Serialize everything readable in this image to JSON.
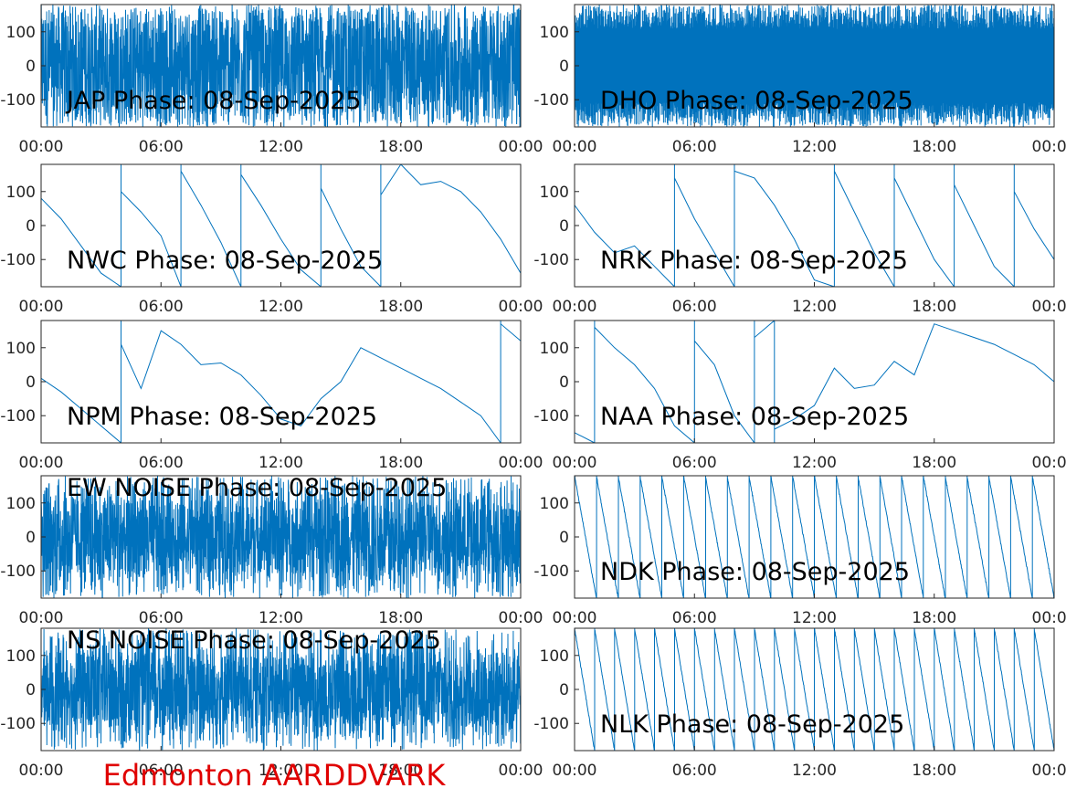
{
  "figure": {
    "footer": "Edmonton AARDDVARK",
    "footer_color": "#e00000",
    "line_color": "#0072bd"
  },
  "chart_data": [
    {
      "type": "line",
      "title": "JAP Phase: 08-Sep-2025",
      "x_ticks": [
        "00:00",
        "06:00",
        "12:00",
        "18:00",
        "00:00"
      ],
      "y_ticks": [
        100,
        0,
        -100
      ],
      "xlim": [
        "00:00",
        "24:00"
      ],
      "ylim": [
        -180,
        180
      ],
      "pattern": "noise",
      "density": 1.0,
      "series": [
        {
          "color": "#0072bd",
          "x": [
            "00:00",
            "24:00"
          ],
          "y": [
            -180,
            180
          ]
        }
      ]
    },
    {
      "type": "line",
      "title": "DHO Phase: 08-Sep-2025",
      "x_ticks": [
        "00:00",
        "06:00",
        "12:00",
        "18:00",
        "00:00"
      ],
      "y_ticks": [
        100,
        0,
        -100
      ],
      "xlim": [
        "00:00",
        "24:00"
      ],
      "ylim": [
        -180,
        180
      ],
      "pattern": "fastwrap",
      "series": [
        {
          "color": "#0072bd",
          "x": [
            "00:00",
            "24:00"
          ],
          "y": [
            -180,
            180
          ]
        }
      ]
    },
    {
      "type": "line",
      "title": "NWC Phase: 08-Sep-2025",
      "x_ticks": [
        "00:00",
        "06:00",
        "12:00",
        "18:00",
        "00:00"
      ],
      "y_ticks": [
        100,
        0,
        -100
      ],
      "xlim": [
        "00:00",
        "24:00"
      ],
      "ylim": [
        -180,
        180
      ],
      "pattern": "wrapped",
      "series": [
        {
          "color": "#0072bd",
          "x": [
            "00:00",
            "01:00",
            "02:00",
            "03:00",
            "04:00",
            "05:00",
            "06:00",
            "07:00",
            "08:00",
            "09:00",
            "10:00",
            "11:00",
            "12:00",
            "13:00",
            "14:00",
            "15:00",
            "16:00",
            "17:00",
            "18:00",
            "19:00",
            "20:00",
            "21:00",
            "22:00",
            "23:00",
            "24:00"
          ],
          "y": [
            80,
            20,
            -60,
            -140,
            100,
            40,
            -30,
            160,
            60,
            -50,
            150,
            60,
            -40,
            -130,
            110,
            -10,
            -120,
            90,
            180,
            120,
            130,
            100,
            40,
            -40,
            -140
          ]
        }
      ]
    },
    {
      "type": "line",
      "title": "NRK Phase: 08-Sep-2025",
      "x_ticks": [
        "00:00",
        "06:00",
        "12:00",
        "18:00",
        "00:00"
      ],
      "y_ticks": [
        100,
        0,
        -100
      ],
      "xlim": [
        "00:00",
        "24:00"
      ],
      "ylim": [
        -180,
        180
      ],
      "pattern": "wrapped",
      "series": [
        {
          "color": "#0072bd",
          "x": [
            "00:00",
            "01:00",
            "02:00",
            "03:00",
            "04:00",
            "05:00",
            "06:00",
            "07:00",
            "08:00",
            "09:00",
            "10:00",
            "11:00",
            "12:00",
            "13:00",
            "14:00",
            "15:00",
            "16:00",
            "17:00",
            "18:00",
            "19:00",
            "20:00",
            "21:00",
            "22:00",
            "23:00",
            "24:00"
          ],
          "y": [
            60,
            -20,
            -80,
            -60,
            -120,
            140,
            20,
            -80,
            160,
            140,
            60,
            -40,
            -160,
            160,
            40,
            -80,
            140,
            20,
            -100,
            120,
            0,
            -120,
            100,
            -10,
            -100
          ]
        }
      ]
    },
    {
      "type": "line",
      "title": "NPM Phase: 08-Sep-2025",
      "x_ticks": [
        "00:00",
        "06:00",
        "12:00",
        "18:00",
        "00:00"
      ],
      "y_ticks": [
        100,
        0,
        -100
      ],
      "xlim": [
        "00:00",
        "24:00"
      ],
      "ylim": [
        -180,
        180
      ],
      "pattern": "wrapped",
      "series": [
        {
          "color": "#0072bd",
          "x": [
            "00:00",
            "01:00",
            "02:00",
            "03:00",
            "04:00",
            "05:00",
            "06:00",
            "07:00",
            "08:00",
            "09:00",
            "10:00",
            "11:00",
            "12:00",
            "13:00",
            "14:00",
            "15:00",
            "16:00",
            "17:00",
            "18:00",
            "19:00",
            "20:00",
            "21:00",
            "22:00",
            "23:00",
            "24:00"
          ],
          "y": [
            10,
            -30,
            -80,
            -130,
            110,
            -20,
            150,
            110,
            50,
            55,
            20,
            -40,
            -110,
            -130,
            -50,
            0,
            100,
            70,
            40,
            10,
            -20,
            -60,
            -100,
            170,
            120
          ]
        }
      ]
    },
    {
      "type": "line",
      "title": "NAA Phase: 08-Sep-2025",
      "x_ticks": [
        "00:00",
        "06:00",
        "12:00",
        "18:00",
        "00:00"
      ],
      "y_ticks": [
        100,
        0,
        -100
      ],
      "xlim": [
        "00:00",
        "24:00"
      ],
      "ylim": [
        -180,
        180
      ],
      "pattern": "wrapped",
      "series": [
        {
          "color": "#0072bd",
          "x": [
            "00:00",
            "01:00",
            "02:00",
            "03:00",
            "04:00",
            "05:00",
            "06:00",
            "07:00",
            "08:00",
            "09:00",
            "10:00",
            "11:00",
            "12:00",
            "13:00",
            "14:00",
            "15:00",
            "16:00",
            "17:00",
            "18:00",
            "19:00",
            "20:00",
            "21:00",
            "22:00",
            "23:00",
            "24:00"
          ],
          "y": [
            -150,
            160,
            100,
            50,
            -20,
            -130,
            120,
            50,
            -100,
            130,
            -140,
            -110,
            -70,
            40,
            -20,
            -10,
            60,
            20,
            170,
            150,
            130,
            110,
            80,
            50,
            0
          ]
        }
      ]
    },
    {
      "type": "line",
      "title": "EW NOISE Phase: 08-Sep-2025",
      "x_ticks": [
        "00:00",
        "06:00",
        "12:00",
        "18:00",
        "00:00"
      ],
      "y_ticks": [
        100,
        0,
        -100
      ],
      "xlim": [
        "00:00",
        "24:00"
      ],
      "ylim": [
        -180,
        180
      ],
      "pattern": "noise",
      "density": 0.6,
      "series": [
        {
          "color": "#0072bd",
          "x": [
            "00:00",
            "24:00"
          ],
          "y": [
            -180,
            180
          ]
        }
      ]
    },
    {
      "type": "line",
      "title": "NDK Phase: 08-Sep-2025",
      "x_ticks": [
        "00:00",
        "06:00",
        "12:00",
        "18:00",
        "00:00"
      ],
      "y_ticks": [
        100,
        0,
        -100
      ],
      "xlim": [
        "00:00",
        "24:00"
      ],
      "ylim": [
        -180,
        180
      ],
      "pattern": "sawtooth",
      "wraps": 22,
      "series": [
        {
          "color": "#0072bd",
          "x": [
            "00:00",
            "24:00"
          ],
          "y": [
            -180,
            180
          ]
        }
      ]
    },
    {
      "type": "line",
      "title": "NS NOISE Phase: 08-Sep-2025",
      "x_ticks": [
        "00:00",
        "06:00",
        "12:00",
        "18:00",
        "00:00"
      ],
      "y_ticks": [
        100,
        0,
        -100
      ],
      "xlim": [
        "00:00",
        "24:00"
      ],
      "ylim": [
        -180,
        180
      ],
      "pattern": "noise",
      "density": 0.55,
      "series": [
        {
          "color": "#0072bd",
          "x": [
            "00:00",
            "24:00"
          ],
          "y": [
            -180,
            180
          ]
        }
      ]
    },
    {
      "type": "line",
      "title": "NLK Phase: 08-Sep-2025",
      "x_ticks": [
        "00:00",
        "06:00",
        "12:00",
        "18:00",
        "00:00"
      ],
      "y_ticks": [
        100,
        0,
        -100
      ],
      "xlim": [
        "00:00",
        "24:00"
      ],
      "ylim": [
        -180,
        180
      ],
      "pattern": "sawtooth",
      "wraps": 24,
      "series": [
        {
          "color": "#0072bd",
          "x": [
            "00:00",
            "24:00"
          ],
          "y": [
            -180,
            180
          ]
        }
      ]
    }
  ]
}
